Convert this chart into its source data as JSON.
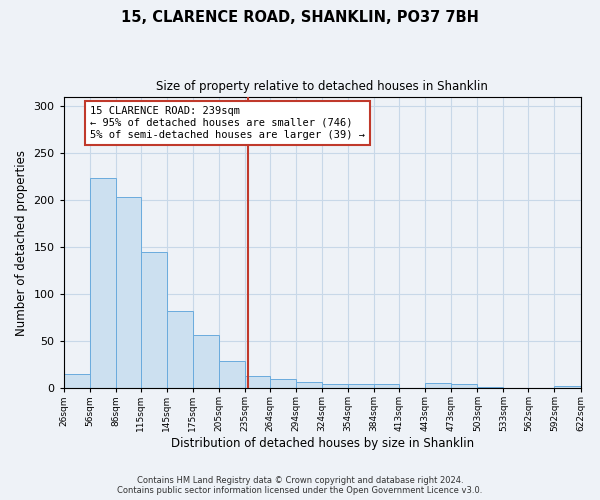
{
  "title1": "15, CLARENCE ROAD, SHANKLIN, PO37 7BH",
  "title2": "Size of property relative to detached houses in Shanklin",
  "xlabel": "Distribution of detached houses by size in Shanklin",
  "ylabel": "Number of detached properties",
  "footer1": "Contains HM Land Registry data © Crown copyright and database right 2024.",
  "footer2": "Contains public sector information licensed under the Open Government Licence v3.0.",
  "bar_color": "#cce0f0",
  "bar_edge_color": "#6aabdd",
  "vline_color": "#c0392b",
  "vline_x": 239,
  "annotation_text": "15 CLARENCE ROAD: 239sqm\n← 95% of detached houses are smaller (746)\n5% of semi-detached houses are larger (39) →",
  "annotation_box_color": "#ffffff",
  "annotation_box_edge": "#c0392b",
  "bin_edges": [
    26,
    56,
    86,
    115,
    145,
    175,
    205,
    235,
    264,
    294,
    324,
    354,
    384,
    413,
    443,
    473,
    503,
    533,
    562,
    592,
    622
  ],
  "bin_counts": [
    15,
    224,
    203,
    145,
    82,
    57,
    29,
    13,
    10,
    7,
    4,
    4,
    4,
    0,
    5,
    4,
    1,
    0,
    0,
    2
  ],
  "ylim": [
    0,
    310
  ],
  "yticks": [
    0,
    50,
    100,
    150,
    200,
    250,
    300
  ],
  "grid_color": "#c8d8e8",
  "background_color": "#eef2f7"
}
